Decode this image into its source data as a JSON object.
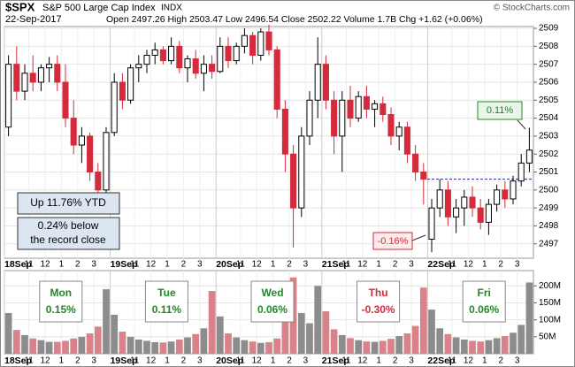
{
  "chart_data": {
    "type": "candlestick",
    "title": "$SPX",
    "subtitle": "S&P 500 Large Cap Index",
    "exchange": "INDX",
    "date": "22-Sep-2017",
    "quote": "Open 2497.26  High 2503.47  Low 2496.54  Close 2502.22  Volume 1.7B  Chg +1.62 (+0.06%)",
    "credit": "© StockCharts.com",
    "up_color": "#000000",
    "down_color": "#d42a3c",
    "up_volume_color": "#8c8c8c",
    "down_volume_color": "#d9828a",
    "grid": true,
    "reference_line": 2500.6,
    "xlim": [
      0,
      65
    ],
    "xticks": [
      {
        "value": 0,
        "label": "18Sep"
      },
      {
        "value": 3,
        "label": "11"
      },
      {
        "value": 5,
        "label": "12"
      },
      {
        "value": 7,
        "label": "1"
      },
      {
        "value": 9,
        "label": "2"
      },
      {
        "value": 11,
        "label": "3"
      },
      {
        "value": 13,
        "label": "19Sep"
      },
      {
        "value": 16,
        "label": "11"
      },
      {
        "value": 18,
        "label": "12"
      },
      {
        "value": 20,
        "label": "1"
      },
      {
        "value": 22,
        "label": "2"
      },
      {
        "value": 24,
        "label": "3"
      },
      {
        "value": 26,
        "label": "20Sep"
      },
      {
        "value": 29,
        "label": "11"
      },
      {
        "value": 31,
        "label": "12"
      },
      {
        "value": 33,
        "label": "1"
      },
      {
        "value": 35,
        "label": "2"
      },
      {
        "value": 37,
        "label": "3"
      },
      {
        "value": 39,
        "label": "21Sep"
      },
      {
        "value": 42,
        "label": "11"
      },
      {
        "value": 44,
        "label": "12"
      },
      {
        "value": 46,
        "label": "1"
      },
      {
        "value": 48,
        "label": "2"
      },
      {
        "value": 50,
        "label": "3"
      },
      {
        "value": 52,
        "label": "22Sep"
      },
      {
        "value": 55,
        "label": "11"
      },
      {
        "value": 57,
        "label": "12"
      },
      {
        "value": 59,
        "label": "1"
      },
      {
        "value": 61,
        "label": "2"
      },
      {
        "value": 63,
        "label": "3"
      }
    ],
    "ylim": [
      2496.2,
      2509.1
    ],
    "yticks": [
      2497,
      2498,
      2499,
      2500,
      2501,
      2502,
      2503,
      2504,
      2505,
      2506,
      2507,
      2508,
      2509
    ],
    "open": [
      2503.5,
      2507,
      2505.5,
      2506.5,
      2506,
      2506.8,
      2507,
      2506,
      2504,
      2502.5,
      2503,
      2501,
      2500,
      2503.2,
      2506,
      2505,
      2506.8,
      2507,
      2507.5,
      2507.8,
      2507.2,
      2508,
      2506.8,
      2507.3,
      2506.5,
      2507,
      2506.6,
      2508,
      2507.2,
      2508,
      2508.6,
      2507.5,
      2508.8,
      2507.8,
      2504.5,
      2502,
      2499,
      2503,
      2505,
      2507,
      2505,
      2503,
      2505,
      2504,
      2505.2,
      2504.5,
      2504.8,
      2504.2,
      2503,
      2503.5,
      2502,
      2501,
      2497.26,
      2499,
      2500,
      2498.5,
      2499,
      2499.6,
      2499,
      2498.2,
      2499.2,
      2500,
      2499.5,
      2500.5,
      2501.5
    ],
    "high": [
      2507.5,
      2508,
      2507,
      2507.5,
      2507,
      2507.4,
      2507.5,
      2507,
      2505,
      2503.5,
      2503.2,
      2501.5,
      2503.5,
      2506.5,
      2506.5,
      2507,
      2507.5,
      2507.8,
      2508.2,
      2508,
      2508.5,
      2508.3,
      2507.5,
      2507.8,
      2507.5,
      2507.5,
      2508.5,
      2508.5,
      2508.2,
      2509,
      2508.8,
      2509,
      2509.2,
      2508,
      2505,
      2502.5,
      2503.5,
      2505.5,
      2508.5,
      2507.5,
      2505.5,
      2505.5,
      2505.8,
      2505.5,
      2505.8,
      2505,
      2505.2,
      2504.6,
      2503.8,
      2503.8,
      2502.5,
      2501.5,
      2499.5,
      2500.6,
      2500.5,
      2499.5,
      2500,
      2500.2,
      2499.5,
      2499.5,
      2500.3,
      2500.5,
      2500.8,
      2502,
      2503.47
    ],
    "low": [
      2503,
      2505,
      2505,
      2505.5,
      2505.5,
      2506,
      2505.5,
      2503.5,
      2502,
      2501.5,
      2500.5,
      2499.6,
      2499.8,
      2503,
      2504.5,
      2504.8,
      2506,
      2506.5,
      2507,
      2507,
      2507,
      2506.5,
      2506,
      2506.2,
      2505.5,
      2506.2,
      2506.5,
      2506.8,
      2507,
      2507.6,
      2507,
      2507.2,
      2507.5,
      2504,
      2501,
      2496.8,
      2498.5,
      2502.5,
      2504,
      2504.5,
      2502,
      2501,
      2503.5,
      2503.8,
      2504,
      2503.5,
      2503.8,
      2502.5,
      2502.2,
      2501.5,
      2500.5,
      2499.2,
      2496.54,
      2498.5,
      2498,
      2497.6,
      2498,
      2498.5,
      2497.8,
      2497.5,
      2498.8,
      2499,
      2499.2,
      2500.2,
      2501
    ],
    "close": [
      2507,
      2505.5,
      2506.5,
      2506,
      2506.8,
      2507,
      2506,
      2504,
      2502.5,
      2503,
      2501,
      2500,
      2503.2,
      2506,
      2505,
      2506.8,
      2507,
      2507.5,
      2507.8,
      2507.2,
      2508,
      2506.8,
      2507.3,
      2506.5,
      2507,
      2506.6,
      2508,
      2507.2,
      2508,
      2508.6,
      2507.5,
      2508.8,
      2507.8,
      2504.5,
      2502,
      2499,
      2503,
      2505,
      2507,
      2505,
      2503,
      2505,
      2504,
      2505.2,
      2504.5,
      2504.8,
      2504.2,
      2503,
      2503.5,
      2502,
      2501,
      2500.6,
      2499,
      2500,
      2498.5,
      2499,
      2499.6,
      2499,
      2498.2,
      2499.2,
      2500,
      2499.5,
      2500.5,
      2501.5,
      2502.22
    ],
    "volume_ylim": [
      0,
      245
    ],
    "volume_yticks": [
      {
        "value": 50,
        "label": "50M"
      },
      {
        "value": 100,
        "label": "100M"
      },
      {
        "value": 150,
        "label": "150M"
      },
      {
        "value": 200,
        "label": "200M"
      }
    ],
    "volume": [
      120,
      70,
      55,
      45,
      40,
      35,
      35,
      38,
      45,
      50,
      60,
      80,
      190,
      115,
      65,
      50,
      42,
      38,
      34,
      33,
      36,
      42,
      48,
      58,
      75,
      185,
      110,
      60,
      48,
      40,
      36,
      32,
      34,
      45,
      150,
      225,
      120,
      90,
      200,
      125,
      72,
      55,
      46,
      40,
      36,
      35,
      38,
      44,
      52,
      60,
      82,
      195,
      130,
      75,
      58,
      48,
      42,
      38,
      36,
      40,
      46,
      52,
      62,
      85,
      210
    ],
    "annotations": {
      "ytd": "Up 11.76% YTD",
      "record": [
        "0.24% below",
        "the record close"
      ],
      "last": "0.11%",
      "first": "-0.16%"
    },
    "day_labels": [
      {
        "day": "Mon",
        "change": "0.15%",
        "color": "#23872a"
      },
      {
        "day": "Tue",
        "change": "0.11%",
        "color": "#23872a"
      },
      {
        "day": "Wed",
        "change": "0.06%",
        "color": "#23872a"
      },
      {
        "day": "Thu",
        "change": "-0.30%",
        "color": "#d42a3c"
      },
      {
        "day": "Fri",
        "change": "0.06%",
        "color": "#23872a"
      }
    ]
  }
}
